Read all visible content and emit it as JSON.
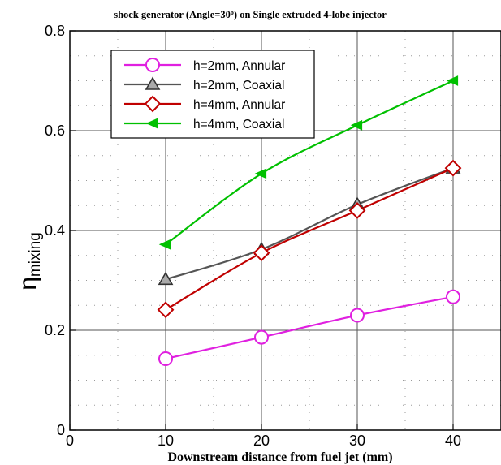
{
  "chart_data": {
    "type": "line",
    "title_main": "shock generator (Angle=30",
    "title_degree": "o",
    "title_rest": ") on Single extruded 4-lobe injector",
    "xlabel": "Downstream distance from fuel jet (mm)",
    "ylabel_main": "η",
    "ylabel_sub": "mixing",
    "xlim": [
      0,
      45
    ],
    "ylim": [
      0,
      0.8
    ],
    "xticks": [
      "0",
      "10",
      "20",
      "30",
      "40"
    ],
    "xtick_values": [
      0,
      10,
      20,
      30,
      40
    ],
    "yticks": [
      "0",
      "0.2",
      "0.4",
      "0.6",
      "0.8"
    ],
    "ytick_values": [
      0,
      0.2,
      0.4,
      0.6,
      0.8
    ],
    "grid": true,
    "legend_position": "top-left",
    "x": [
      10,
      20,
      30,
      40
    ],
    "series": [
      {
        "name": "h=2mm, Annular",
        "values": [
          0.143,
          0.186,
          0.23,
          0.267
        ],
        "color": "#e020e0",
        "marker": "circle"
      },
      {
        "name": "h=2mm, Coaxial",
        "values": [
          0.302,
          0.362,
          0.452,
          0.525
        ],
        "color": "#555555",
        "marker": "triangle-up"
      },
      {
        "name": "h=4mm, Annular",
        "values": [
          0.241,
          0.355,
          0.44,
          0.525
        ],
        "color": "#c00000",
        "marker": "diamond"
      },
      {
        "name": "h=4mm, Coaxial",
        "values": [
          0.372,
          0.514,
          0.611,
          0.7
        ],
        "color": "#00c000",
        "marker": "triangle-left"
      }
    ]
  }
}
